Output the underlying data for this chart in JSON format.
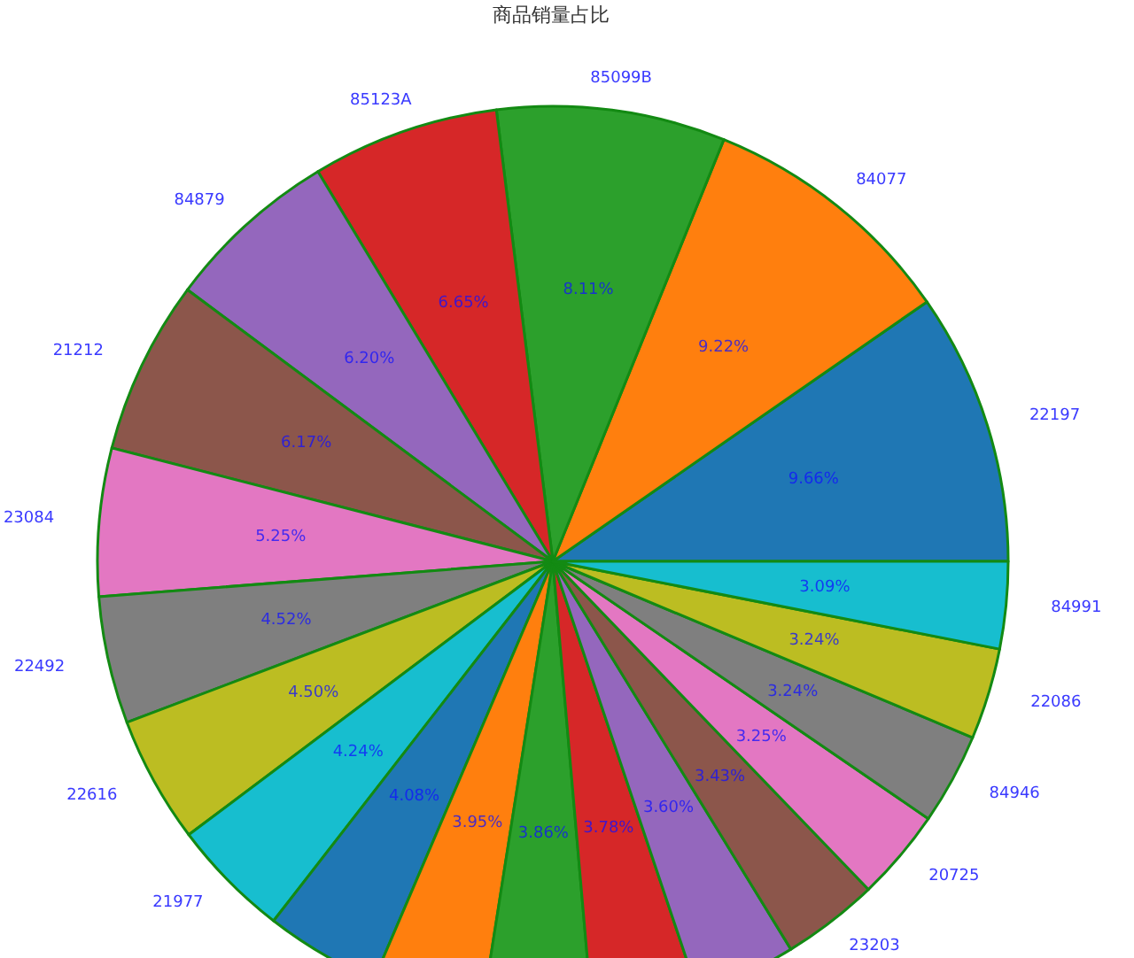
{
  "chart_data": {
    "type": "pie",
    "title": "商品销量占比",
    "categories": [
      "22197",
      "84077",
      "85099B",
      "85123A",
      "84879",
      "21212",
      "23084",
      "22492",
      "22616",
      "21977",
      null,
      null,
      null,
      null,
      null,
      "23203",
      "20725",
      "84946",
      "22086",
      "84991"
    ],
    "values": [
      9.66,
      9.22,
      8.11,
      6.65,
      6.2,
      6.17,
      5.25,
      4.52,
      4.5,
      4.24,
      4.08,
      3.95,
      3.86,
      3.78,
      3.6,
      3.43,
      3.25,
      3.24,
      3.24,
      3.09
    ],
    "value_labels": [
      "9.66%",
      "9.22%",
      "8.11%",
      "6.65%",
      "6.20%",
      "6.17%",
      "5.25%",
      "4.52%",
      "4.50%",
      "4.24%",
      "4.08%",
      "3.95%",
      "3.86%",
      "3.78%",
      "3.60%",
      "3.43%",
      "3.25%",
      "3.24%",
      "3.24%",
      "3.09%"
    ],
    "colors": [
      "#1f77b4",
      "#ff7f0e",
      "#2ca02c",
      "#d62728",
      "#9467bd",
      "#8c564b",
      "#e377c2",
      "#7f7f7f",
      "#bcbd22",
      "#17becf",
      "#1f77b4",
      "#ff7f0e",
      "#2ca02c",
      "#d62728",
      "#9467bd",
      "#8c564b",
      "#e377c2",
      "#7f7f7f",
      "#bcbd22",
      "#17becf"
    ]
  }
}
